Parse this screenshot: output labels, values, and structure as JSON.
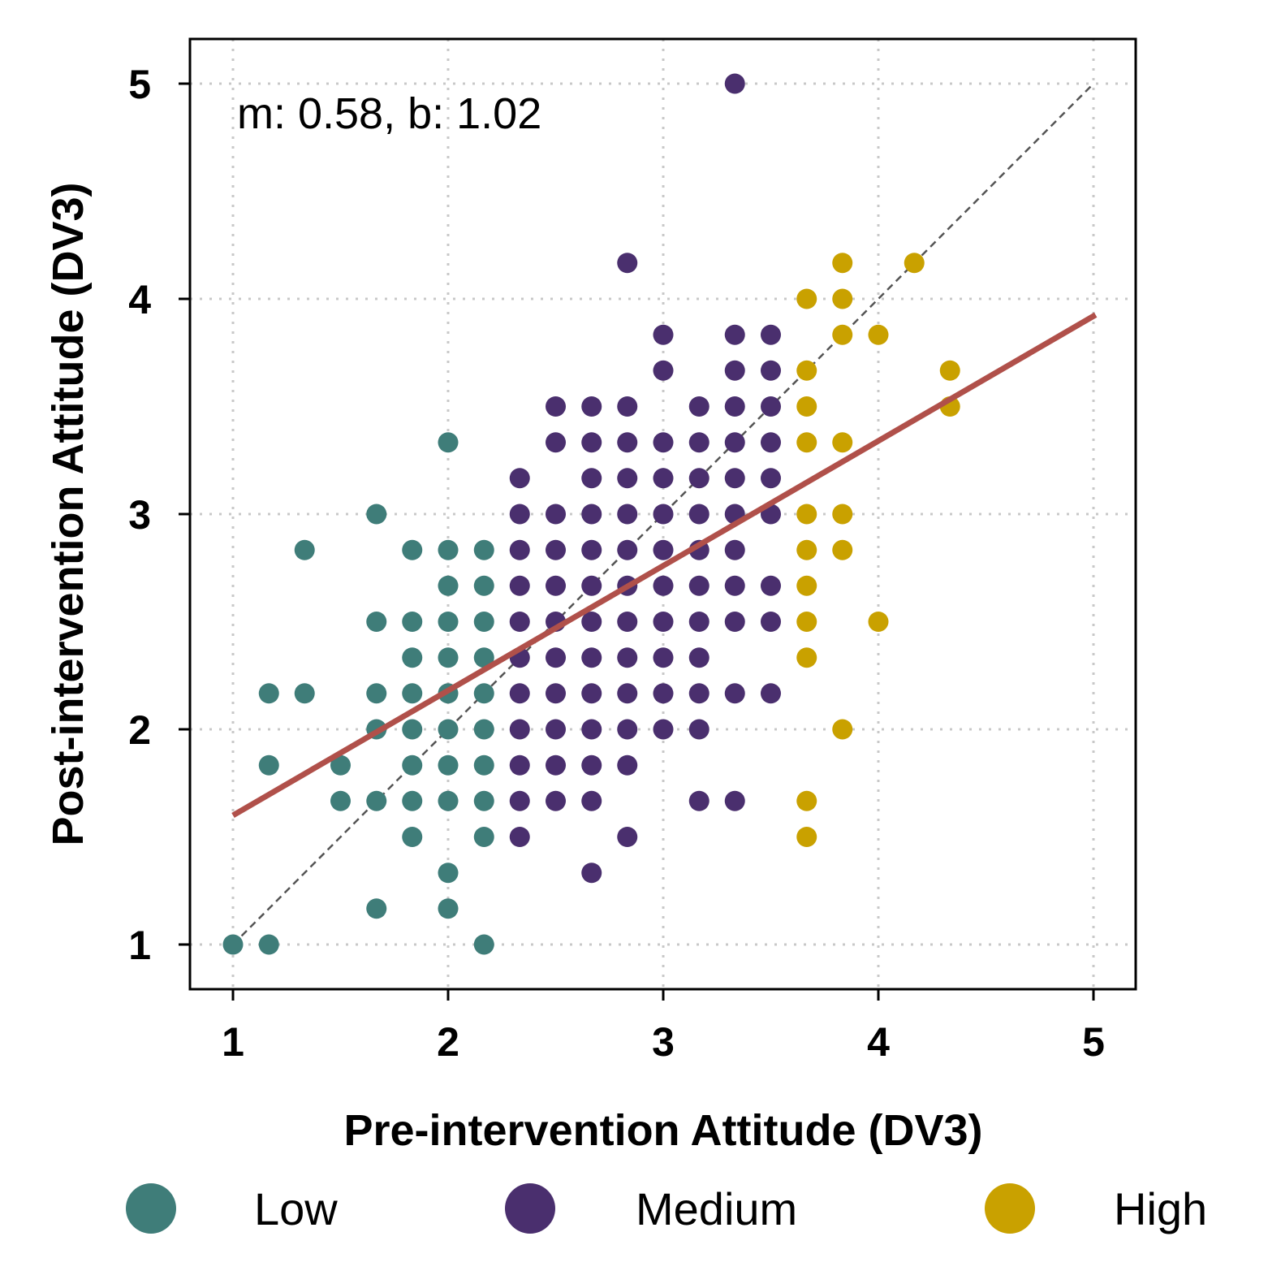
{
  "chart_data": {
    "type": "scatter",
    "title": "",
    "xlabel": "Pre-intervention Attitude (DV3)",
    "ylabel": "Post-intervention Attitude (DV3)",
    "xlim": [
      0.8,
      5.2
    ],
    "ylim": [
      0.8,
      5.2
    ],
    "xticks": [
      "1",
      "2",
      "3",
      "4",
      "5"
    ],
    "yticks": [
      "1",
      "2",
      "3",
      "4",
      "5"
    ],
    "grid": true,
    "annotation": "m: 0.58, b: 1.02",
    "regression": {
      "m": 0.58,
      "b": 1.02,
      "color": "#b0504a"
    },
    "identity_line": {
      "from": [
        1,
        1
      ],
      "to": [
        5,
        5
      ],
      "color": "#555555"
    },
    "legend_position": "bottom",
    "series": [
      {
        "name": "Low",
        "color": "#3f7d79",
        "points": [
          [
            1.0,
            1.0
          ],
          [
            1.167,
            1.0
          ],
          [
            1.167,
            1.833
          ],
          [
            1.167,
            2.167
          ],
          [
            1.333,
            2.167
          ],
          [
            1.333,
            2.833
          ],
          [
            1.5,
            1.833
          ],
          [
            1.5,
            1.667
          ],
          [
            1.667,
            3.0
          ],
          [
            1.667,
            2.5
          ],
          [
            1.667,
            2.167
          ],
          [
            1.667,
            2.0
          ],
          [
            1.667,
            1.667
          ],
          [
            1.667,
            1.167
          ],
          [
            1.833,
            2.833
          ],
          [
            1.833,
            2.5
          ],
          [
            1.833,
            2.333
          ],
          [
            1.833,
            2.167
          ],
          [
            1.833,
            2.0
          ],
          [
            1.833,
            1.833
          ],
          [
            1.833,
            1.667
          ],
          [
            1.833,
            1.5
          ],
          [
            2.0,
            3.333
          ],
          [
            2.0,
            2.833
          ],
          [
            2.0,
            2.667
          ],
          [
            2.0,
            2.5
          ],
          [
            2.0,
            2.333
          ],
          [
            2.0,
            2.167
          ],
          [
            2.0,
            2.0
          ],
          [
            2.0,
            1.833
          ],
          [
            2.0,
            1.667
          ],
          [
            2.0,
            1.333
          ],
          [
            2.0,
            1.167
          ],
          [
            2.167,
            2.833
          ],
          [
            2.167,
            2.667
          ],
          [
            2.167,
            2.5
          ],
          [
            2.167,
            2.333
          ],
          [
            2.167,
            2.167
          ],
          [
            2.167,
            2.0
          ],
          [
            2.167,
            1.833
          ],
          [
            2.167,
            1.667
          ],
          [
            2.167,
            1.5
          ],
          [
            2.167,
            1.0
          ]
        ]
      },
      {
        "name": "Medium",
        "color": "#4a2f6e",
        "points": [
          [
            2.333,
            3.167
          ],
          [
            2.333,
            3.0
          ],
          [
            2.333,
            2.833
          ],
          [
            2.333,
            2.667
          ],
          [
            2.333,
            2.5
          ],
          [
            2.333,
            2.333
          ],
          [
            2.333,
            2.167
          ],
          [
            2.333,
            2.0
          ],
          [
            2.333,
            1.833
          ],
          [
            2.333,
            1.667
          ],
          [
            2.333,
            1.5
          ],
          [
            2.5,
            3.5
          ],
          [
            2.5,
            3.333
          ],
          [
            2.5,
            3.0
          ],
          [
            2.5,
            2.833
          ],
          [
            2.5,
            2.667
          ],
          [
            2.5,
            2.5
          ],
          [
            2.5,
            2.333
          ],
          [
            2.5,
            2.167
          ],
          [
            2.5,
            2.0
          ],
          [
            2.5,
            1.833
          ],
          [
            2.5,
            1.667
          ],
          [
            2.667,
            3.5
          ],
          [
            2.667,
            3.333
          ],
          [
            2.667,
            3.167
          ],
          [
            2.667,
            3.0
          ],
          [
            2.667,
            2.833
          ],
          [
            2.667,
            2.667
          ],
          [
            2.667,
            2.5
          ],
          [
            2.667,
            2.333
          ],
          [
            2.667,
            2.167
          ],
          [
            2.667,
            2.0
          ],
          [
            2.667,
            1.833
          ],
          [
            2.667,
            1.667
          ],
          [
            2.667,
            1.333
          ],
          [
            2.833,
            4.167
          ],
          [
            2.833,
            3.5
          ],
          [
            2.833,
            3.333
          ],
          [
            2.833,
            3.167
          ],
          [
            2.833,
            3.0
          ],
          [
            2.833,
            2.833
          ],
          [
            2.833,
            2.667
          ],
          [
            2.833,
            2.5
          ],
          [
            2.833,
            2.333
          ],
          [
            2.833,
            2.167
          ],
          [
            2.833,
            2.0
          ],
          [
            2.833,
            1.833
          ],
          [
            2.833,
            1.5
          ],
          [
            3.0,
            3.833
          ],
          [
            3.0,
            3.667
          ],
          [
            3.0,
            3.333
          ],
          [
            3.0,
            3.167
          ],
          [
            3.0,
            3.0
          ],
          [
            3.0,
            2.833
          ],
          [
            3.0,
            2.667
          ],
          [
            3.0,
            2.5
          ],
          [
            3.0,
            2.333
          ],
          [
            3.0,
            2.167
          ],
          [
            3.0,
            2.0
          ],
          [
            3.167,
            3.5
          ],
          [
            3.167,
            3.333
          ],
          [
            3.167,
            3.167
          ],
          [
            3.167,
            3.0
          ],
          [
            3.167,
            2.833
          ],
          [
            3.167,
            2.667
          ],
          [
            3.167,
            2.5
          ],
          [
            3.167,
            2.333
          ],
          [
            3.167,
            2.167
          ],
          [
            3.167,
            2.0
          ],
          [
            3.167,
            1.667
          ],
          [
            3.333,
            5.0
          ],
          [
            3.333,
            3.833
          ],
          [
            3.333,
            3.667
          ],
          [
            3.333,
            3.5
          ],
          [
            3.333,
            3.333
          ],
          [
            3.333,
            3.167
          ],
          [
            3.333,
            3.0
          ],
          [
            3.333,
            2.833
          ],
          [
            3.333,
            2.667
          ],
          [
            3.333,
            2.5
          ],
          [
            3.333,
            2.167
          ],
          [
            3.333,
            1.667
          ],
          [
            3.5,
            3.833
          ],
          [
            3.5,
            3.667
          ],
          [
            3.5,
            3.5
          ],
          [
            3.5,
            3.333
          ],
          [
            3.5,
            3.167
          ],
          [
            3.5,
            3.0
          ],
          [
            3.5,
            2.667
          ],
          [
            3.5,
            2.5
          ],
          [
            3.5,
            2.167
          ]
        ]
      },
      {
        "name": "High",
        "color": "#c9a100",
        "points": [
          [
            3.667,
            4.0
          ],
          [
            3.667,
            3.667
          ],
          [
            3.667,
            3.5
          ],
          [
            3.667,
            3.333
          ],
          [
            3.667,
            3.0
          ],
          [
            3.667,
            2.833
          ],
          [
            3.667,
            2.667
          ],
          [
            3.667,
            2.5
          ],
          [
            3.667,
            2.333
          ],
          [
            3.667,
            1.667
          ],
          [
            3.667,
            1.5
          ],
          [
            3.833,
            4.167
          ],
          [
            3.833,
            4.0
          ],
          [
            3.833,
            3.833
          ],
          [
            3.833,
            3.333
          ],
          [
            3.833,
            3.0
          ],
          [
            3.833,
            2.833
          ],
          [
            3.833,
            2.0
          ],
          [
            4.0,
            3.833
          ],
          [
            4.0,
            2.5
          ],
          [
            4.167,
            4.167
          ],
          [
            4.333,
            3.667
          ],
          [
            4.333,
            3.5
          ]
        ]
      }
    ]
  }
}
